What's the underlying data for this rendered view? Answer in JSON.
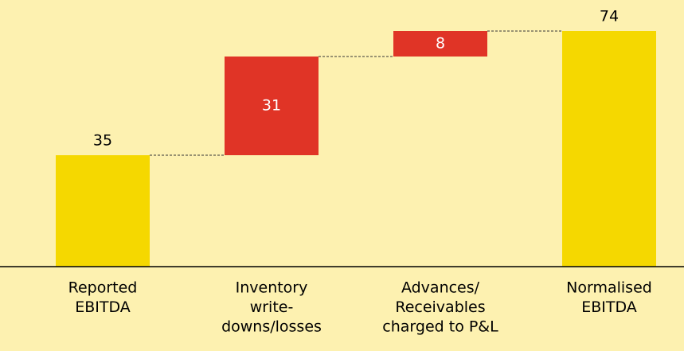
{
  "chart_data": {
    "type": "waterfall",
    "categories": [
      [
        "Reported",
        "EBITDA"
      ],
      [
        "Inventory",
        "write-",
        "downs/losses"
      ],
      [
        "Advances/",
        "Receivables",
        "charged to P&L"
      ],
      [
        "Normalised",
        "EBITDA"
      ]
    ],
    "measure": [
      "total",
      "relative",
      "relative",
      "total"
    ],
    "values": [
      35,
      31,
      8,
      74
    ],
    "colors": [
      "#f5d800",
      "#e03426",
      "#e03426",
      "#f5d800"
    ],
    "background": "#fdf1b0"
  }
}
